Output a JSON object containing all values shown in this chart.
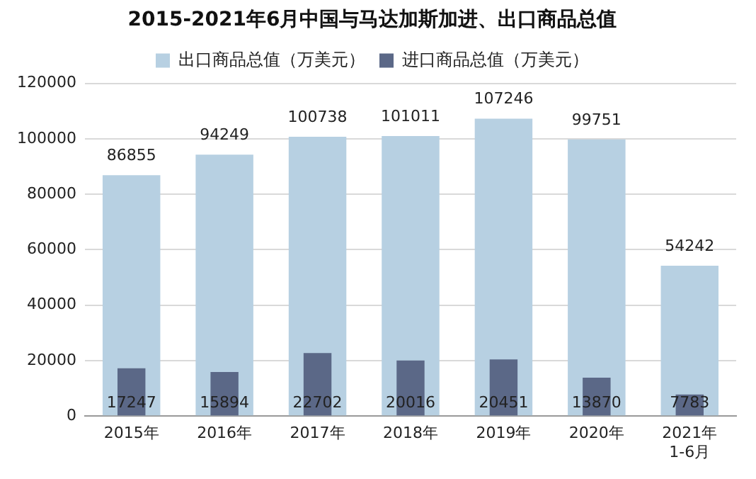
{
  "chart_data": {
    "type": "bar",
    "title": "2015-2021年6月中国与马达加斯加进、出口商品总值",
    "categories": [
      "2015年",
      "2016年",
      "2017年",
      "2018年",
      "2019年",
      "2020年",
      "2021年\n1-6月"
    ],
    "series": [
      {
        "name": "出口商品总值（万美元）",
        "color": "#b7d0e2",
        "values": [
          86855,
          94249,
          100738,
          101011,
          107246,
          99751,
          54242
        ]
      },
      {
        "name": "进口商品总值（万美元）",
        "color": "#5b6887",
        "values": [
          17247,
          15894,
          22702,
          20016,
          20451,
          13870,
          7783
        ]
      }
    ],
    "ylim": [
      0,
      120000
    ],
    "yticks": [
      0,
      20000,
      40000,
      60000,
      80000,
      100000,
      120000
    ],
    "grid": "y",
    "legend": "top",
    "data_labels": true
  }
}
